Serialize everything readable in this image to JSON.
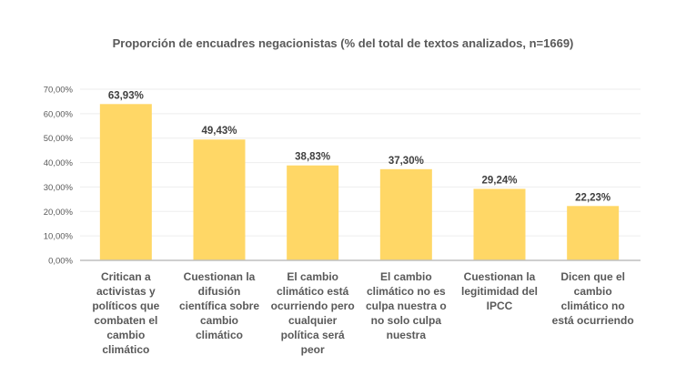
{
  "chart_data": {
    "type": "bar",
    "title": "Proporción de encuadres negacionistas (% del total de textos analizados, n=1669)",
    "xlabel": "",
    "ylabel": "",
    "ylim": [
      0,
      70
    ],
    "yticks": [
      0,
      10,
      20,
      30,
      40,
      50,
      60,
      70
    ],
    "ytick_labels": [
      "0,00%",
      "10,00%",
      "20,00%",
      "30,00%",
      "40,00%",
      "50,00%",
      "60,00%",
      "70,00%"
    ],
    "grid": true,
    "legend": "none",
    "bar_color": "#FFD766",
    "categories": [
      [
        "Critican a",
        "activistas y",
        "políticos que",
        "combaten el",
        "cambio",
        "climático"
      ],
      [
        "Cuestionan la",
        "difusión",
        "científica sobre",
        "cambio",
        "climático"
      ],
      [
        "El cambio",
        "climático está",
        "ocurriendo pero",
        "cualquier",
        "política será",
        "peor"
      ],
      [
        "El cambio",
        "climático no es",
        "culpa nuestra o",
        "no solo culpa",
        "nuestra"
      ],
      [
        "Cuestionan la",
        "legitimidad del",
        "IPCC"
      ],
      [
        "Dicen que el",
        "cambio",
        "climático no",
        "está ocurriendo"
      ]
    ],
    "values": [
      63.93,
      49.43,
      38.83,
      37.3,
      29.24,
      22.23
    ],
    "data_labels": [
      "63,93%",
      "49,43%",
      "38,83%",
      "37,30%",
      "29,24%",
      "22,23%"
    ]
  }
}
